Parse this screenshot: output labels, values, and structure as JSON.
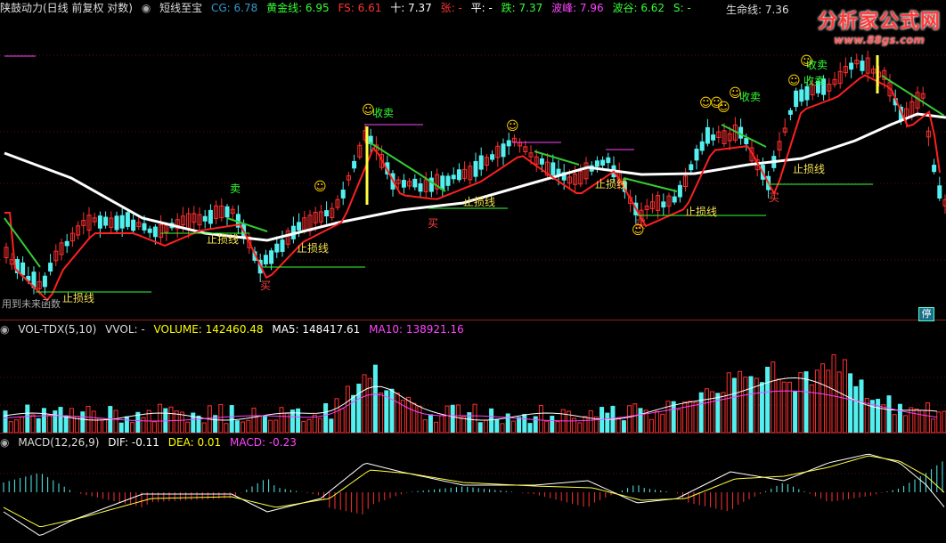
{
  "main_header": {
    "title": "陕鼓动力(日线 前复权 对数)",
    "indicator": "短线至宝",
    "cg": "CG: 6.78",
    "golden": "黄金线: 6.95",
    "fs": "FS: 6.61",
    "ten": "十: 7.37",
    "zhang": "张: -",
    "ping": "平: -",
    "die": "跌: 7.37",
    "crest": "波峰: 7.96",
    "trough": "波谷: 6.62",
    "s": "S: -"
  },
  "lifeline_label": "生命线: 7.36",
  "watermark": {
    "logo": "分析家公式网",
    "url": "www.88gs.com"
  },
  "note_until": "用到未来函数",
  "stop_button": "停",
  "annotations": {
    "stoploss": "止损线",
    "buy": "买",
    "sell": "卖",
    "cheap_sell": "收卖"
  },
  "vol_header": {
    "name": "VOL-TDX(5,10)",
    "vvol": "VVOL: -",
    "volume": "VOLUME: 142460.48",
    "ma5": "MA5: 148417.61",
    "ma10": "MA10: 138921.16"
  },
  "macd_header": {
    "name": "MACD(12,26,9)",
    "dif": "DIF: -0.11",
    "dea": "DEA: 0.01",
    "macd": "MACD: -0.23"
  },
  "colors": {
    "up": "#ff3030",
    "down": "#54f0f0",
    "ma_white": "#ffffff",
    "ma_red": "#ff2020",
    "ma_green": "#33cc33",
    "purple": "#ff40ff",
    "yellow": "#ffff40",
    "stoploss": "#f5e050"
  }
}
